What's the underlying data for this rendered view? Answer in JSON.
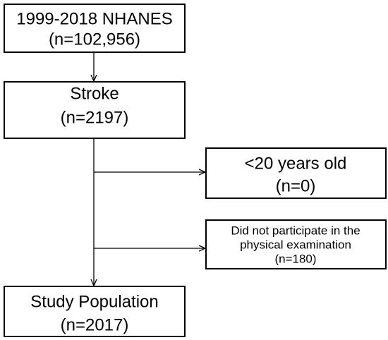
{
  "nodes": [
    {
      "lines": [
        "1999-2018 NHANES",
        "(n=102,956)"
      ]
    },
    {
      "lines": [
        "Stroke",
        "(n=2197)"
      ]
    },
    {
      "lines": [
        "<20 years old",
        "(n=0)"
      ]
    },
    {
      "lines": [
        "Did not participate in the",
        "physical examination",
        "(n=180)"
      ]
    },
    {
      "lines": [
        "Study Population",
        "(n=2017)"
      ]
    }
  ]
}
